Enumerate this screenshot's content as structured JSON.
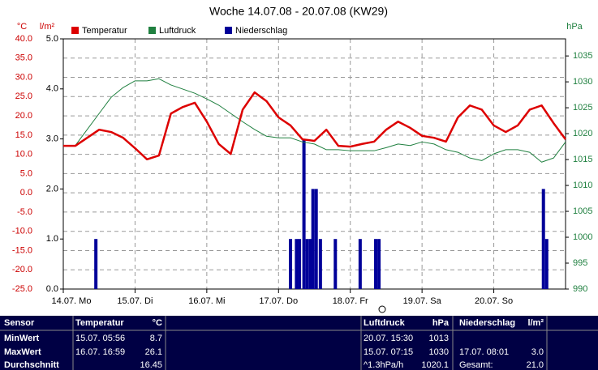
{
  "chart_data": {
    "type": "line",
    "title": "Woche 14.07.08 - 20.07.08 (KW29)",
    "ylabel": "°C",
    "y3label": "l/m²",
    "y2label": "hPa",
    "xlim": [
      0,
      168
    ],
    "xticks": [
      {
        "value": 0,
        "label": "14.07. Mo"
      },
      {
        "value": 24,
        "label": "15.07. Di"
      },
      {
        "value": 48,
        "label": "16.07. Mi"
      },
      {
        "value": 72,
        "label": "17.07. Do"
      },
      {
        "value": 96,
        "label": "18.07. Fr"
      },
      {
        "value": 120,
        "label": "19.07. Sa"
      },
      {
        "value": 144,
        "label": "20.07. So"
      }
    ],
    "ylim": [
      -25,
      40
    ],
    "yticks": [
      {
        "value": -25,
        "label": "-25.0"
      },
      {
        "value": -20,
        "label": "-20.0"
      },
      {
        "value": -15,
        "label": "-15.0"
      },
      {
        "value": -10,
        "label": "-10.0"
      },
      {
        "value": -5,
        "label": "-5.0"
      },
      {
        "value": 0,
        "label": "0.0"
      },
      {
        "value": 5,
        "label": "5.0"
      },
      {
        "value": 10,
        "label": "10.0"
      },
      {
        "value": 15,
        "label": "15.0"
      },
      {
        "value": 20,
        "label": "20.0"
      },
      {
        "value": 25,
        "label": "25.0"
      },
      {
        "value": 30,
        "label": "30.0"
      },
      {
        "value": 35,
        "label": "35.0"
      },
      {
        "value": 40,
        "label": "40.0"
      }
    ],
    "y3lim": [
      0,
      5
    ],
    "y3ticks": [
      {
        "value": 0,
        "label": "0.0"
      },
      {
        "value": 1,
        "label": "1.0"
      },
      {
        "value": 2,
        "label": "2.0"
      },
      {
        "value": 3,
        "label": "3.0"
      },
      {
        "value": 4,
        "label": "4.0"
      },
      {
        "value": 5,
        "label": "5.0"
      }
    ],
    "y2lim": [
      990,
      1038.3
    ],
    "y2ticks": [
      990,
      995,
      1000,
      1005,
      1010,
      1015,
      1020,
      1025,
      1030,
      1035
    ],
    "grid": true,
    "x": [
      0,
      4,
      8,
      12,
      16,
      20,
      24,
      28,
      32,
      36,
      40,
      44,
      48,
      52,
      56,
      60,
      64,
      68,
      72,
      76,
      80,
      84,
      88,
      92,
      96,
      100,
      104,
      108,
      112,
      116,
      120,
      124,
      128,
      132,
      136,
      140,
      144,
      148,
      152,
      156,
      160,
      164,
      168
    ],
    "series": [
      {
        "name": "Temperatur",
        "color": "#dd0000",
        "axis": "y",
        "values": [
          12.2,
          12.2,
          14.3,
          16.4,
          15.8,
          14.3,
          11.6,
          8.7,
          9.7,
          20.6,
          22.3,
          23.4,
          18.5,
          12.7,
          10.1,
          21.6,
          26.1,
          23.8,
          19.6,
          17.5,
          13.9,
          13.5,
          16.4,
          12.2,
          12.0,
          12.7,
          13.3,
          16.4,
          18.5,
          16.9,
          14.8,
          14.3,
          13.3,
          19.6,
          22.7,
          21.6,
          17.5,
          15.8,
          17.5,
          21.6,
          22.7,
          18.1,
          13.9
        ]
      },
      {
        "name": "Luftdruck",
        "color": "#208040",
        "axis": "y2",
        "values": [
          1017.7,
          1017.7,
          1020.8,
          1023.9,
          1027,
          1028.9,
          1030.2,
          1030.2,
          1030.6,
          1029.4,
          1028.6,
          1027.8,
          1026.7,
          1025.5,
          1023.9,
          1022.3,
          1020.8,
          1019.5,
          1019.2,
          1019.2,
          1018.4,
          1018,
          1016.9,
          1016.9,
          1016.7,
          1016.7,
          1016.7,
          1017.3,
          1018,
          1017.7,
          1018.4,
          1018,
          1016.9,
          1016.4,
          1015.3,
          1014.8,
          1016.1,
          1016.9,
          1016.9,
          1016.4,
          1014.5,
          1015.3,
          1018.4
        ]
      },
      {
        "name": "Niederschlag",
        "color": "#000099",
        "axis": "y3",
        "type": "bar",
        "x": [
          10.9,
          76,
          78,
          79,
          80.5,
          81.6,
          82.7,
          83.5,
          84.6,
          86,
          91,
          99.3,
          104.5,
          105.6,
          160.6,
          161.7
        ],
        "values": [
          1,
          1,
          1,
          1,
          3,
          1,
          1,
          2,
          2,
          1,
          1,
          1,
          1,
          1,
          2,
          1
        ]
      }
    ]
  },
  "table": {
    "header": [
      "Sensor",
      "Temperatur",
      "°C",
      "Luftdruck",
      "hPa",
      "Niederschlag",
      "l/m²"
    ],
    "rows": [
      [
        "MinWert",
        "15.07. 05:56",
        "8.7",
        "20.07. 15:30",
        "1013",
        null,
        null
      ],
      [
        "MaxWert",
        "16.07. 16:59",
        "26.1",
        "15.07. 07:15",
        "1030",
        "17.07. 08:01",
        "3.0"
      ],
      [
        "Durchschnitt",
        null,
        "16.45",
        "^1.3hPa/h",
        "1020.1",
        "Gesamt:",
        "21.0"
      ]
    ]
  }
}
